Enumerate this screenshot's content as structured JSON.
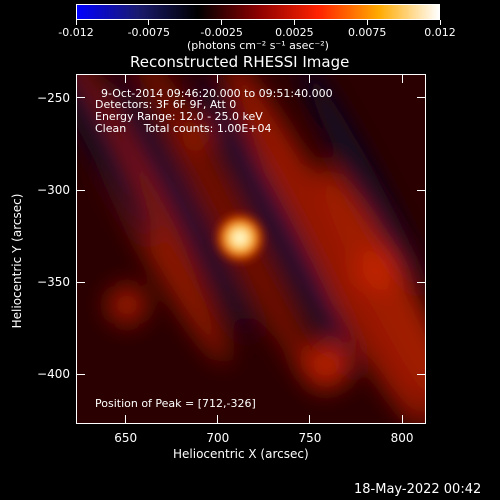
{
  "colorbar": {
    "ticks": [
      "-0.012",
      "-0.0075",
      "-0.0025",
      "0.0025",
      "0.0075",
      "0.012"
    ],
    "unit_label": "(photons cm⁻² s⁻¹ asec⁻²)",
    "colors": [
      "#0000ff",
      "#1a1a70",
      "#000000",
      "#8b0000",
      "#ff2200",
      "#ffaa00",
      "#ffffff"
    ]
  },
  "chart_data": {
    "type": "heatmap",
    "title": "Reconstructed RHESSI Image",
    "xlabel": "Heliocentric X (arcsec)",
    "ylabel": "Heliocentric Y (arcsec)",
    "xlim": [
      623,
      813
    ],
    "ylim": [
      -427,
      -237
    ],
    "x_ticks": [
      "650",
      "700",
      "750",
      "800"
    ],
    "y_ticks": [
      "−250",
      "−300",
      "−350",
      "−400"
    ],
    "grid": false,
    "peak": [
      712,
      -326
    ],
    "annotations": {
      "time_range": "9-Oct-2014 09:46:20.000 to 09:51:40.000",
      "detectors": "Detectors: 3F 6F 9F, Att 0",
      "energy": "Energy Range: 12.0 - 25.0 keV",
      "method": "Clean     Total counts: 1.00E+04",
      "peak_text": "Position of Peak = [712,-326]"
    }
  },
  "footer": {
    "date": "18-May-2022 00:42"
  }
}
